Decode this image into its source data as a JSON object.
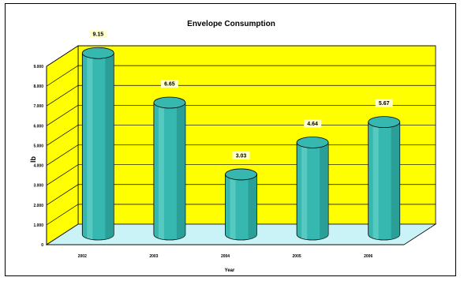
{
  "chart_data": {
    "type": "bar",
    "title": "Envelope Consumption",
    "xlabel": "Year",
    "ylabel": "lb",
    "categories": [
      "2002",
      "2003",
      "2004",
      "2005",
      "2006"
    ],
    "values": [
      9.15,
      6.65,
      3.03,
      4.64,
      5.67
    ],
    "value_labels": [
      "9.15",
      "6.65",
      "3.03",
      "4.64",
      "5.67"
    ],
    "yticks": [
      "0",
      "1.000",
      "2.000",
      "3.000",
      "4.000",
      "5.000",
      "6.000",
      "7.000",
      "8.000",
      "9.000"
    ],
    "ylim": [
      0,
      9
    ],
    "grid": true,
    "legend": "none",
    "colors": {
      "back_wall": "#ffff00",
      "floor": "#c9f3f6",
      "bar_fill": "#36b8b0",
      "bar_dark": "#1f8a83",
      "bar_light": "#7fe0d8",
      "label_bg": "#ffffcc",
      "gridline": "#000000"
    }
  }
}
